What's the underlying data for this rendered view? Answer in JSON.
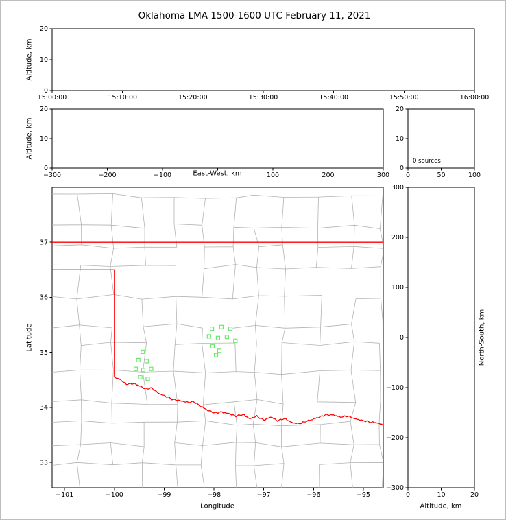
{
  "title": "Oklahoma LMA 1500-1600 UTC February 11, 2021",
  "chart_data": [
    {
      "id": "time-height-panel",
      "type": "scatter",
      "ylabel": "Altitude, km",
      "xticks": [
        0,
        1,
        2,
        3,
        4,
        5,
        6
      ],
      "xticklabels": [
        "15:00:00",
        "15:10:00",
        "15:20:00",
        "15:30:00",
        "15:40:00",
        "15:50:00",
        "16:00:00"
      ],
      "ylim": [
        0,
        20
      ],
      "yticks": [
        0,
        10,
        20
      ],
      "yticklabels": [
        "0",
        "10",
        "20"
      ],
      "points": []
    },
    {
      "id": "east-west-height-panel",
      "type": "scatter",
      "xlabel": "East-West, km",
      "ylabel": "Altitude, km",
      "xlim": [
        -300,
        300
      ],
      "xticks": [
        -300,
        -200,
        -100,
        0,
        100,
        200,
        300
      ],
      "xticklabels": [
        "−300",
        "−200",
        "−100",
        "",
        "100",
        "200",
        "300"
      ],
      "ylim": [
        0,
        20
      ],
      "yticks": [
        0,
        10,
        20
      ],
      "yticklabels": [
        "0",
        "10",
        "20"
      ],
      "points": []
    },
    {
      "id": "altitude-histogram-panel",
      "type": "line",
      "annotation": "0 sources",
      "xlim": [
        0,
        100
      ],
      "xticks": [
        0,
        50,
        100
      ],
      "xticklabels": [
        "0",
        "50",
        "100"
      ],
      "ylim": [
        0,
        20
      ],
      "yticks": [
        0,
        10,
        20
      ],
      "yticklabels": [
        "0",
        "10",
        "20"
      ],
      "points": []
    },
    {
      "id": "plan-view-map",
      "type": "scatter",
      "xlabel": "Longitude",
      "ylabel": "Latitude",
      "xlim": [
        -101.25,
        -94.6
      ],
      "ylim": [
        32.54,
        38.0
      ],
      "xticks": [
        -101,
        -100,
        -99,
        -98,
        -97,
        -96,
        -95
      ],
      "xticklabels": [
        "−101",
        "−100",
        "−99",
        "−98",
        "−97",
        "−96",
        "−95"
      ],
      "yticks": [
        33,
        34,
        35,
        36,
        37
      ],
      "yticklabels": [
        "33",
        "34",
        "35",
        "36",
        "37"
      ],
      "colors": {
        "county_boundaries": "#b3b3b3",
        "state_border": "#ff0000",
        "river": "#ff0000",
        "stations": "#6ce86c"
      },
      "stations": [
        [
          -99.43,
          35.01
        ],
        [
          -99.52,
          34.86
        ],
        [
          -99.35,
          34.84
        ],
        [
          -99.57,
          34.7
        ],
        [
          -99.42,
          34.68
        ],
        [
          -99.26,
          34.7
        ],
        [
          -99.48,
          34.55
        ],
        [
          -99.33,
          34.52
        ],
        [
          -98.04,
          35.43
        ],
        [
          -97.85,
          35.46
        ],
        [
          -97.67,
          35.43
        ],
        [
          -98.1,
          35.29
        ],
        [
          -97.92,
          35.26
        ],
        [
          -97.74,
          35.28
        ],
        [
          -97.57,
          35.21
        ],
        [
          -98.03,
          35.11
        ],
        [
          -97.89,
          35.03
        ],
        [
          -97.96,
          34.95
        ]
      ],
      "state_border": {
        "north_border_lat": 37.0,
        "panhandle_south_lat": 36.5,
        "west_border_lon": -100.0,
        "red_river": [
          [
            -100.0,
            34.56
          ],
          [
            -99.88,
            34.5
          ],
          [
            -99.76,
            34.42
          ],
          [
            -99.62,
            34.43
          ],
          [
            -99.5,
            34.4
          ],
          [
            -99.38,
            34.34
          ],
          [
            -99.24,
            34.35
          ],
          [
            -99.1,
            34.24
          ],
          [
            -98.96,
            34.2
          ],
          [
            -98.82,
            34.14
          ],
          [
            -98.68,
            34.13
          ],
          [
            -98.54,
            34.09
          ],
          [
            -98.4,
            34.1
          ],
          [
            -98.26,
            34.01
          ],
          [
            -98.12,
            33.95
          ],
          [
            -97.98,
            33.9
          ],
          [
            -97.84,
            33.92
          ],
          [
            -97.7,
            33.88
          ],
          [
            -97.56,
            33.84
          ],
          [
            -97.42,
            33.87
          ],
          [
            -97.28,
            33.8
          ],
          [
            -97.14,
            33.84
          ],
          [
            -97.0,
            33.77
          ],
          [
            -96.86,
            33.82
          ],
          [
            -96.72,
            33.76
          ],
          [
            -96.58,
            33.8
          ],
          [
            -96.44,
            33.73
          ],
          [
            -96.3,
            33.7
          ],
          [
            -96.16,
            33.74
          ],
          [
            -96.02,
            33.78
          ],
          [
            -95.88,
            33.83
          ],
          [
            -95.74,
            33.87
          ],
          [
            -95.6,
            33.86
          ],
          [
            -95.46,
            33.82
          ],
          [
            -95.32,
            33.84
          ],
          [
            -95.18,
            33.8
          ],
          [
            -95.04,
            33.77
          ],
          [
            -94.9,
            33.74
          ],
          [
            -94.75,
            33.72
          ],
          [
            -94.6,
            33.68
          ]
        ]
      }
    },
    {
      "id": "north-south-height-panel",
      "type": "scatter",
      "xlabel": "Altitude, km",
      "ylabel": "North-South, km",
      "xlim": [
        0,
        20
      ],
      "xticks": [
        0,
        10,
        20
      ],
      "xticklabels": [
        "0",
        "10",
        "20"
      ],
      "ylim": [
        -300,
        300
      ],
      "yticks": [
        -300,
        -200,
        -100,
        0,
        100,
        200,
        300
      ],
      "yticklabels": [
        "−300",
        "−200",
        "−100",
        "0",
        "100",
        "200",
        "300"
      ],
      "points": []
    }
  ]
}
